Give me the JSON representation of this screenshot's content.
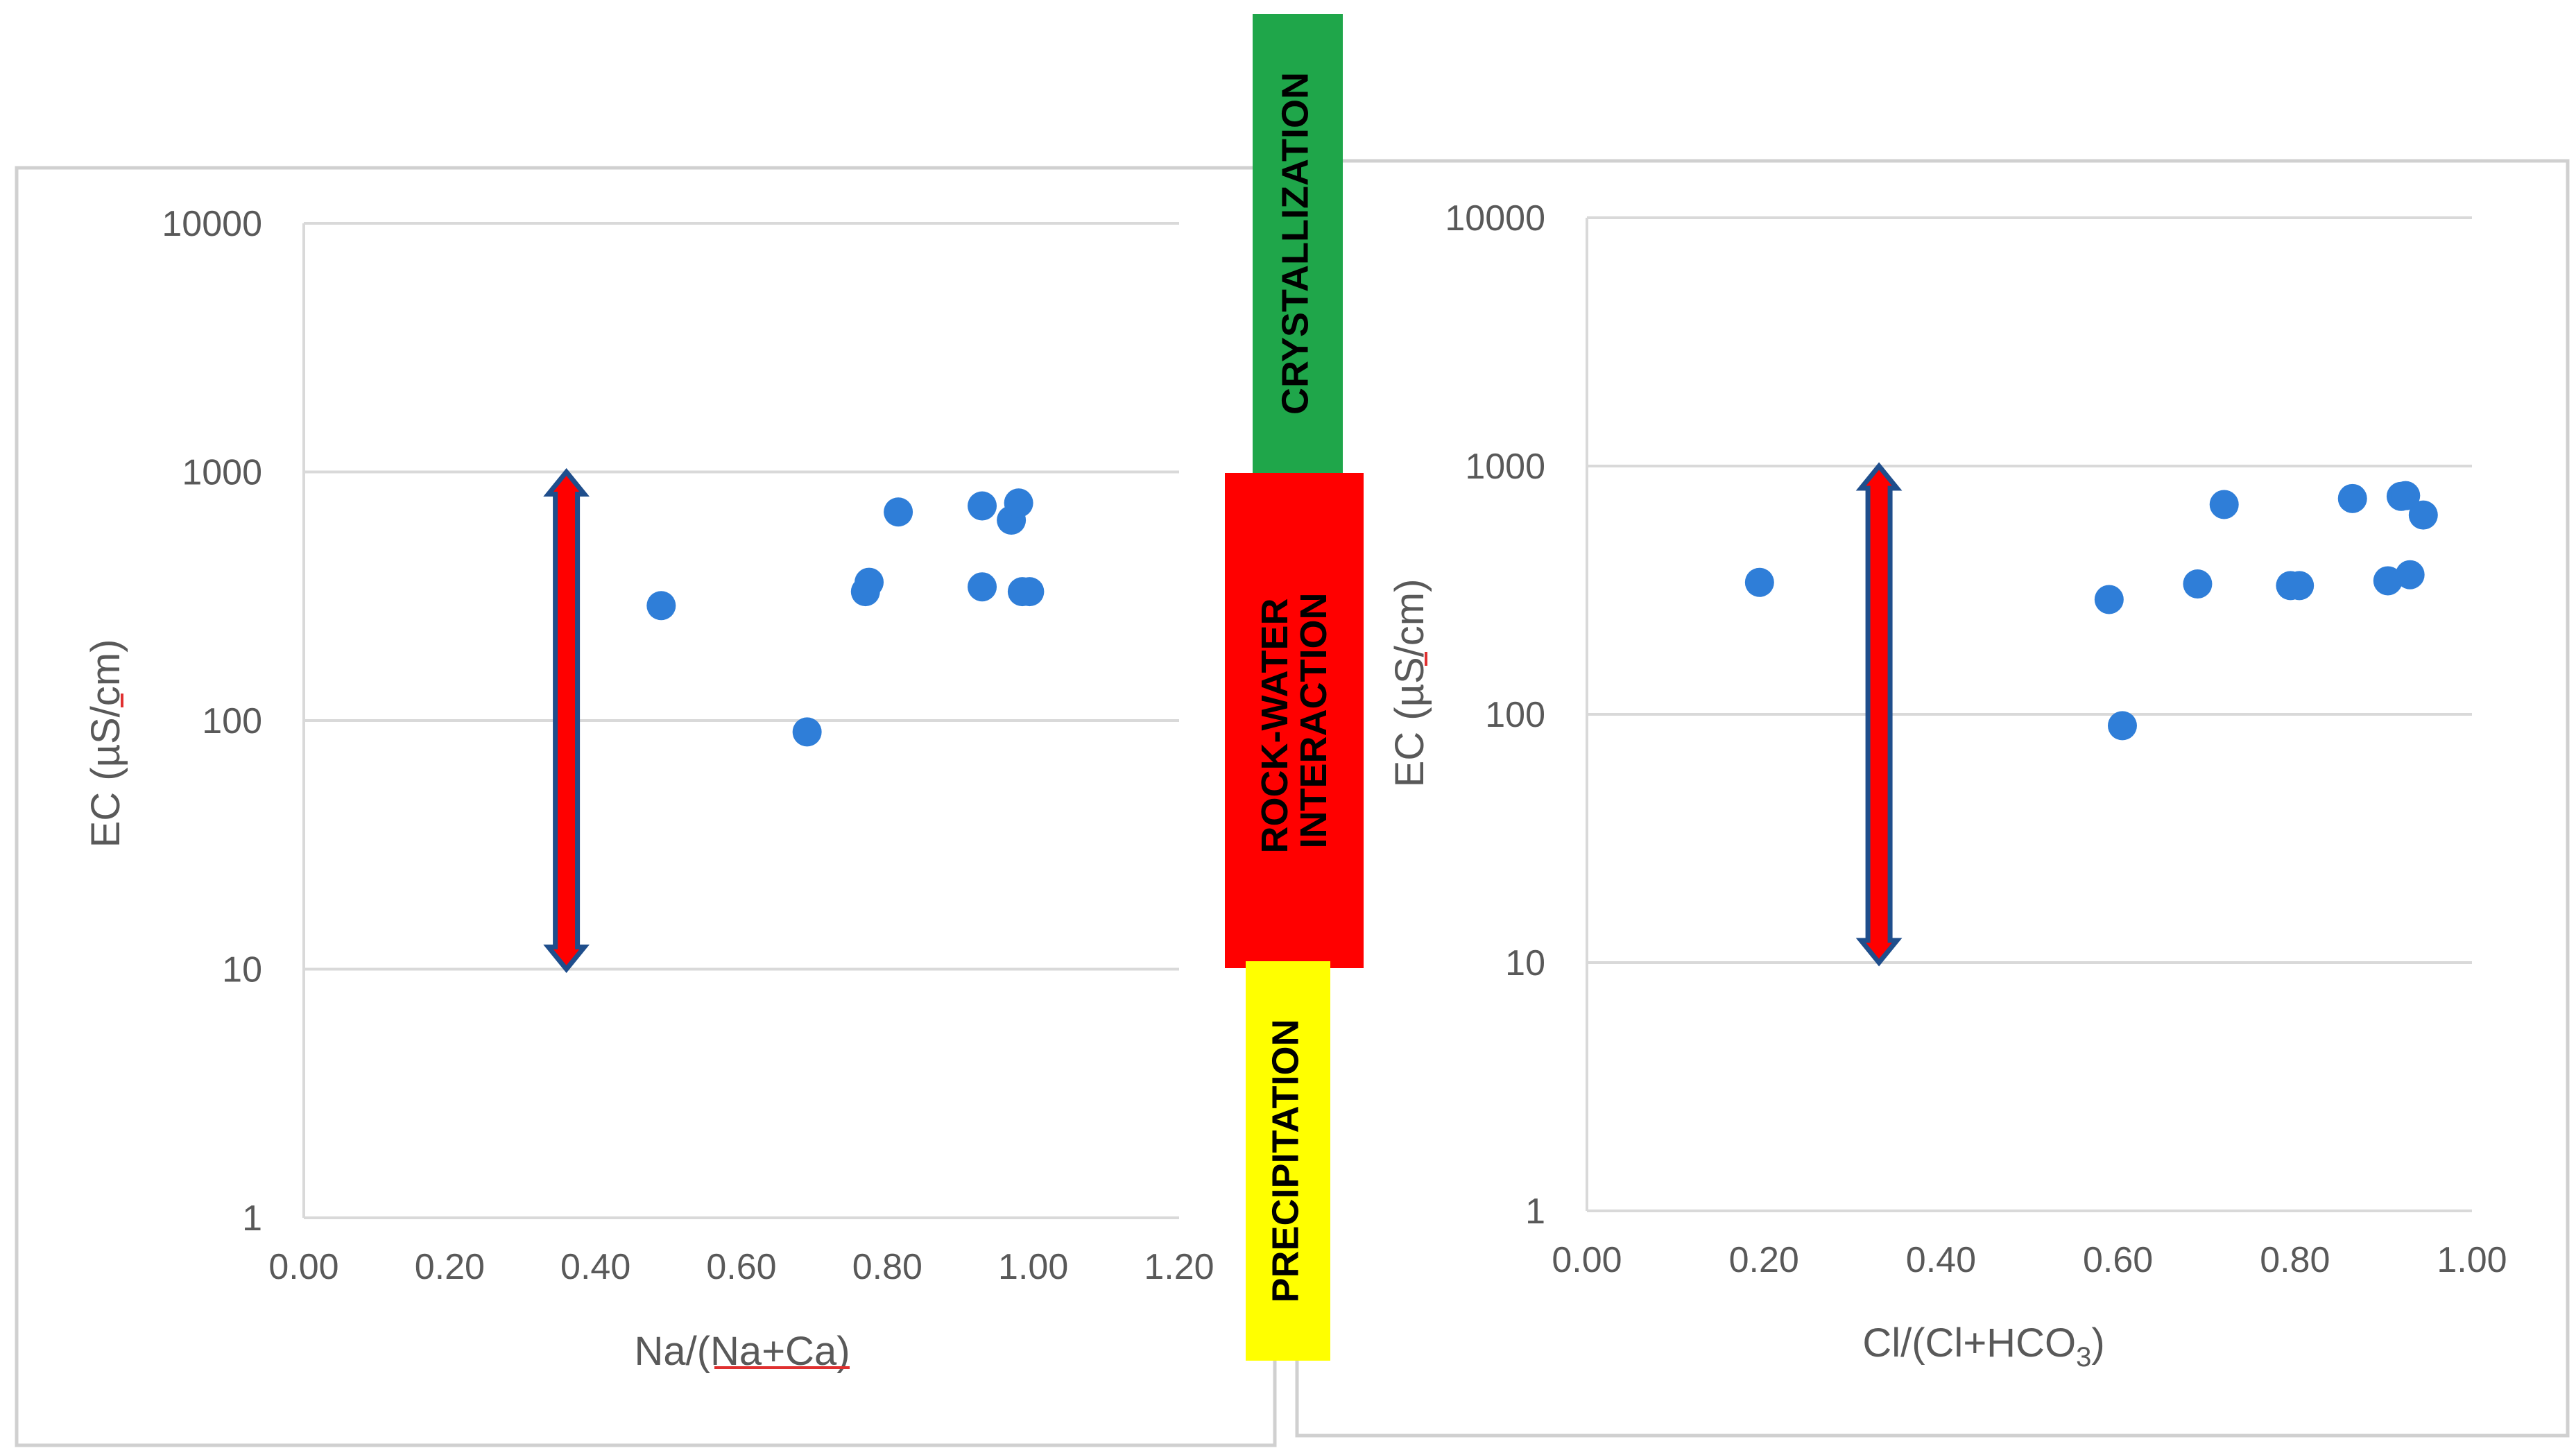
{
  "colors": {
    "point": "#2F7ED8",
    "grid": "#D9D9D9",
    "frame": "#D0D0D0",
    "arrow_fill": "#FF0000",
    "arrow_outline": "#1F4E8C",
    "crystallization": "#1FA64A",
    "rock_water": "#FF0000",
    "precipitation": "#FFFF00"
  },
  "zones": {
    "crystallization": "CRYSTALLIZATION",
    "rock_water_line1": "ROCK-WATER",
    "rock_water_line2": "INTERACTION",
    "precipitation": "PRECIPITATION"
  },
  "chart_data": [
    {
      "type": "scatter",
      "ylabel": "EC (µS/cm)",
      "xlabel": "Na/(Na+Ca)",
      "xlabel_parts": {
        "plain": "Na/(",
        "underlined": "Na+Ca",
        "close": ")"
      },
      "x_range": [
        0,
        1.2
      ],
      "x_ticks": [
        "0.00",
        "0.20",
        "0.40",
        "0.60",
        "0.80",
        "1.00",
        "1.20"
      ],
      "y_scale": "log",
      "y_range": [
        1,
        10000
      ],
      "y_ticks": [
        "1",
        "10",
        "100",
        "1000",
        "10000"
      ],
      "gridlines": "horizontal",
      "arrow": {
        "x": 0.36,
        "y_from": 10,
        "y_to": 1000
      },
      "points": [
        [
          0.49,
          290
        ],
        [
          0.69,
          90
        ],
        [
          0.77,
          330
        ],
        [
          0.775,
          360
        ],
        [
          0.815,
          690
        ],
        [
          0.93,
          730
        ],
        [
          0.93,
          345
        ],
        [
          0.97,
          640
        ],
        [
          0.98,
          750
        ],
        [
          0.985,
          330
        ],
        [
          0.995,
          330
        ]
      ]
    },
    {
      "type": "scatter",
      "ylabel": "EC (µS/cm)",
      "xlabel": "Cl/(Cl+HCO3)",
      "xlabel_parts": {
        "main": "Cl/(Cl+HCO",
        "sub": "3",
        "close": ")"
      },
      "x_range": [
        0,
        1
      ],
      "x_ticks": [
        "0.00",
        "0.20",
        "0.40",
        "0.60",
        "0.80",
        "1.00"
      ],
      "y_scale": "log",
      "y_range": [
        1,
        10000
      ],
      "y_ticks": [
        "1",
        "10",
        "100",
        "1000",
        "10000"
      ],
      "gridlines": "horizontal",
      "arrow": {
        "x": 0.33,
        "y_from": 10,
        "y_to": 1000
      },
      "points": [
        [
          0.195,
          340
        ],
        [
          0.59,
          290
        ],
        [
          0.605,
          90
        ],
        [
          0.69,
          335
        ],
        [
          0.72,
          700
        ],
        [
          0.795,
          330
        ],
        [
          0.805,
          330
        ],
        [
          0.865,
          740
        ],
        [
          0.905,
          345
        ],
        [
          0.92,
          755
        ],
        [
          0.925,
          760
        ],
        [
          0.93,
          365
        ],
        [
          0.945,
          635
        ]
      ]
    }
  ]
}
